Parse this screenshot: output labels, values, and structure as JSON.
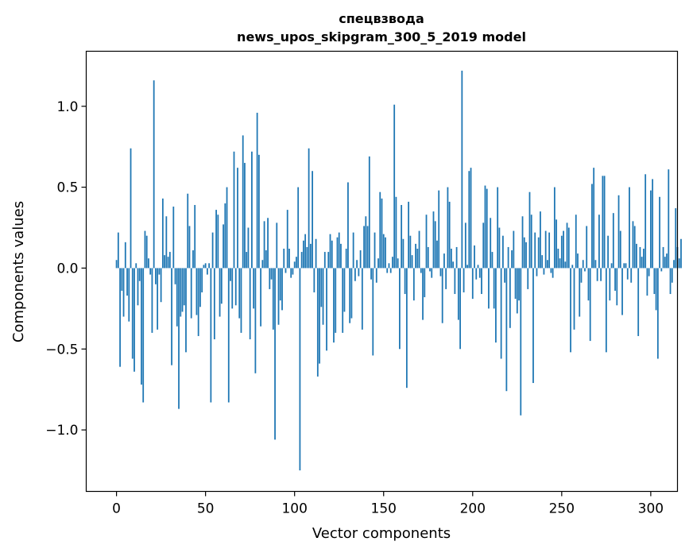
{
  "chart_data": {
    "type": "bar",
    "title": "спецвзвода",
    "subtitle": "news_upos_skipgram_300_5_2019 model",
    "xlabel": "Vector components",
    "ylabel": "Components values",
    "xlim": [
      -17,
      315
    ],
    "ylim": [
      -1.38,
      1.34
    ],
    "xticks": [
      0,
      50,
      100,
      150,
      200,
      250,
      300
    ],
    "xtick_labels": [
      "0",
      "50",
      "100",
      "150",
      "200",
      "250",
      "300"
    ],
    "yticks": [
      -1.0,
      -0.5,
      0.0,
      0.5,
      1.0
    ],
    "ytick_labels": [
      "−1.0",
      "−0.5",
      "0.0",
      "0.5",
      "1.0"
    ],
    "bar_color": "#1f77b4",
    "values": [
      0.05,
      0.22,
      -0.61,
      -0.14,
      -0.3,
      0.16,
      -0.17,
      -0.33,
      0.74,
      -0.56,
      -0.64,
      0.03,
      -0.23,
      -0.08,
      -0.72,
      -0.83,
      0.23,
      0.2,
      0.06,
      -0.04,
      -0.4,
      1.16,
      -0.1,
      -0.38,
      -0.04,
      -0.21,
      0.43,
      0.08,
      0.32,
      0.07,
      0.1,
      -0.6,
      0.38,
      -0.1,
      -0.36,
      -0.87,
      -0.3,
      -0.27,
      -0.23,
      -0.52,
      0.46,
      0.26,
      -0.31,
      0.11,
      0.39,
      -0.29,
      -0.42,
      -0.24,
      -0.15,
      0.02,
      0.03,
      -0.04,
      0.03,
      -0.83,
      0.22,
      -0.44,
      0.36,
      0.33,
      -0.3,
      -0.22,
      0.27,
      0.4,
      0.5,
      -0.83,
      -0.08,
      -0.25,
      0.72,
      -0.23,
      0.62,
      -0.31,
      -0.4,
      0.82,
      0.65,
      0.1,
      0.25,
      -0.44,
      0.72,
      -0.25,
      -0.65,
      0.96,
      0.7,
      -0.36,
      0.05,
      0.29,
      0.11,
      0.31,
      -0.13,
      -0.07,
      -0.38,
      -1.06,
      0.28,
      -0.35,
      -0.2,
      -0.26,
      0.12,
      -0.03,
      0.36,
      0.12,
      -0.06,
      -0.04,
      0.04,
      0.07,
      0.5,
      -1.25,
      0.1,
      0.17,
      0.21,
      0.13,
      0.74,
      0.15,
      0.6,
      -0.15,
      0.18,
      -0.67,
      -0.59,
      -0.24,
      -0.35,
      0.1,
      -0.51,
      0.1,
      0.21,
      0.17,
      -0.46,
      -0.4,
      0.19,
      0.22,
      0.15,
      -0.4,
      -0.27,
      0.12,
      0.53,
      -0.34,
      -0.31,
      0.22,
      -0.08,
      0.05,
      -0.05,
      0.11,
      -0.38,
      0.26,
      0.32,
      0.26,
      0.69,
      -0.07,
      -0.54,
      0.22,
      -0.09,
      0.06,
      0.47,
      0.43,
      0.21,
      0.19,
      -0.03,
      0.03,
      -0.03,
      0.07,
      1.01,
      0.44,
      0.06,
      -0.5,
      0.39,
      0.18,
      -0.16,
      -0.74,
      0.41,
      0.2,
      0.08,
      -0.2,
      0.15,
      0.12,
      0.23,
      -0.03,
      -0.32,
      -0.18,
      0.33,
      0.13,
      -0.02,
      -0.06,
      0.35,
      0.29,
      0.17,
      0.48,
      -0.05,
      -0.34,
      0.09,
      -0.13,
      0.5,
      0.41,
      0.12,
      0.04,
      -0.16,
      0.13,
      -0.32,
      -0.5,
      1.22,
      -0.15,
      0.28,
      0.02,
      0.6,
      0.62,
      -0.19,
      0.14,
      -0.07,
      0.02,
      -0.06,
      -0.16,
      0.28,
      0.51,
      0.49,
      -0.25,
      0.31,
      0.1,
      -0.25,
      -0.46,
      0.5,
      0.25,
      -0.56,
      0.2,
      -0.09,
      -0.76,
      0.13,
      -0.37,
      0.11,
      0.23,
      -0.19,
      -0.28,
      -0.2,
      -0.91,
      0.32,
      0.19,
      0.16,
      -0.13,
      0.47,
      0.33,
      -0.71,
      0.22,
      -0.05,
      0.19,
      0.35,
      0.08,
      -0.04,
      0.23,
      0.05,
      0.22,
      -0.03,
      -0.06,
      0.5,
      0.3,
      0.12,
      0.06,
      0.2,
      0.23,
      0.04,
      0.28,
      0.25,
      -0.52,
      0.02,
      -0.38,
      0.33,
      0.09,
      -0.3,
      -0.09,
      0.05,
      -0.02,
      0.26,
      -0.2,
      -0.45,
      0.52,
      0.62,
      0.05,
      -0.08,
      0.33,
      -0.08,
      0.57,
      0.57,
      -0.52,
      0.2,
      -0.2,
      0.03,
      0.34,
      -0.14,
      -0.23,
      0.45,
      0.23,
      -0.29,
      0.03,
      0.03,
      -0.07,
      0.5,
      -0.09,
      0.29,
      0.26,
      0.15,
      -0.42,
      0.13,
      0.07,
      0.12,
      0.58,
      -0.17,
      -0.05,
      0.48,
      0.55,
      -0.16,
      -0.26,
      -0.56,
      0.44,
      -0.02,
      0.13,
      0.07,
      0.09,
      0.61,
      -0.16,
      -0.09,
      0.05,
      0.37,
      0.13,
      0.06,
      0.18
    ]
  }
}
